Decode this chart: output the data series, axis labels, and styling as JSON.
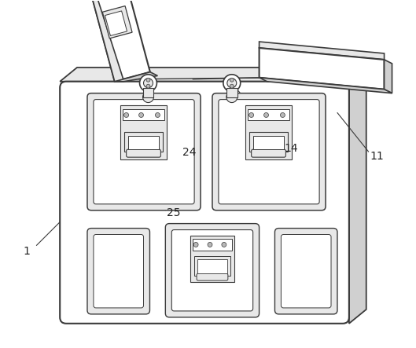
{
  "background_color": "#ffffff",
  "line_color": "#3a3a3a",
  "fill_white": "#ffffff",
  "fill_light": "#e8e8e8",
  "fill_mid": "#d0d0d0",
  "fill_dark": "#b8b8b8",
  "figsize": [
    5.29,
    4.43
  ],
  "dpi": 100
}
